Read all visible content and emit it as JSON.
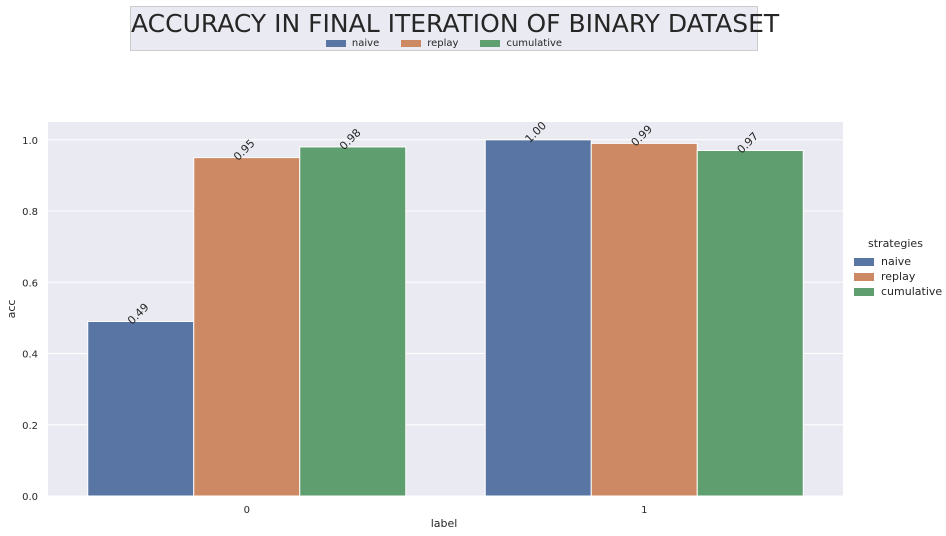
{
  "chart_data": {
    "type": "bar",
    "title": "ACCURACY IN FINAL ITERATION OF BINARY DATASET",
    "xlabel": "label",
    "ylabel": "acc",
    "categories": [
      "0",
      "1"
    ],
    "series": [
      {
        "name": "naive",
        "color": "#5875a4",
        "values": [
          0.49,
          1.0
        ],
        "labels": [
          "0.49",
          "1.00"
        ]
      },
      {
        "name": "replay",
        "color": "#cc8963",
        "values": [
          0.95,
          0.99
        ],
        "labels": [
          "0.95",
          "0.99"
        ]
      },
      {
        "name": "cumulative",
        "color": "#5f9e6e",
        "values": [
          0.98,
          0.97
        ],
        "labels": [
          "0.98",
          "0.97"
        ]
      }
    ],
    "ylim": [
      0,
      1.05
    ],
    "yticks": [
      "0.0",
      "0.2",
      "0.4",
      "0.6",
      "0.8",
      "1.0"
    ],
    "grid": true,
    "legend_title": "strategies",
    "legend_placement": [
      "top-center",
      "right"
    ]
  }
}
